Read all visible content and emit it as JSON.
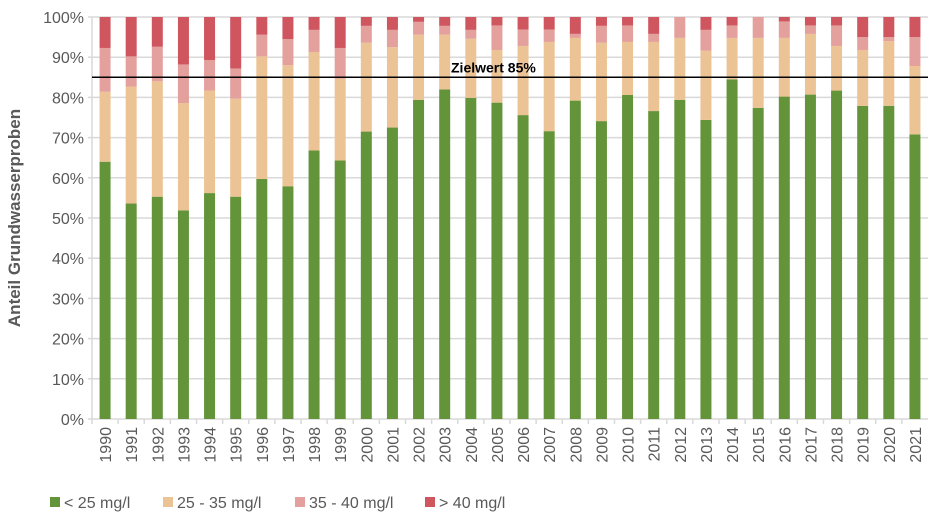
{
  "chart_data": {
    "type": "bar",
    "stacked": true,
    "title": "",
    "xlabel": "",
    "ylabel": "Anteil Grundwasserproben",
    "ylim": [
      0,
      100
    ],
    "yticks": [
      "0%",
      "10%",
      "20%",
      "30%",
      "40%",
      "50%",
      "60%",
      "70%",
      "80%",
      "90%",
      "100%"
    ],
    "grid": true,
    "legend_position": "bottom",
    "categories": [
      "1990",
      "1991",
      "1992",
      "1993",
      "1994",
      "1995",
      "1996",
      "1997",
      "1998",
      "1999",
      "2000",
      "2001",
      "2002",
      "2003",
      "2004",
      "2005",
      "2006",
      "2007",
      "2008",
      "2009",
      "2010",
      "2011",
      "2012",
      "2013",
      "2014",
      "2015",
      "2016",
      "2017",
      "2018",
      "2019",
      "2020",
      "2021"
    ],
    "series": [
      {
        "name": "< 25 mg/l",
        "color": "#63943a",
        "values": [
          64.0,
          53.6,
          55.3,
          51.9,
          56.2,
          55.3,
          59.7,
          57.9,
          66.8,
          64.3,
          71.5,
          72.5,
          79.4,
          82.0,
          79.9,
          78.7,
          75.6,
          71.6,
          79.2,
          74.1,
          80.6,
          76.6,
          79.4,
          74.4,
          84.5,
          77.4,
          80.2,
          80.7,
          81.7,
          77.9,
          77.9,
          70.8
        ]
      },
      {
        "name": "25 - 35 mg/l",
        "color": "#ecc394",
        "values": [
          17.4,
          29.1,
          28.7,
          26.7,
          25.5,
          24.4,
          30.5,
          30.1,
          24.5,
          20.4,
          22.1,
          20.0,
          16.2,
          13.6,
          14.7,
          13.1,
          17.2,
          22.2,
          15.6,
          19.5,
          13.2,
          17.2,
          15.4,
          17.2,
          10.3,
          17.4,
          14.6,
          15.1,
          11.1,
          13.9,
          16.1,
          17.0
        ]
      },
      {
        "name": "35 - 40 mg/l",
        "color": "#e3a09c",
        "values": [
          10.9,
          7.5,
          8.6,
          9.6,
          7.6,
          7.5,
          5.4,
          6.5,
          5.5,
          7.6,
          4.2,
          4.3,
          3.2,
          2.2,
          2.2,
          6.1,
          4.1,
          3.1,
          1.0,
          4.2,
          4.1,
          2.0,
          5.2,
          5.2,
          3.1,
          5.2,
          4.1,
          2.1,
          5.1,
          3.2,
          1.0,
          7.2
        ]
      },
      {
        "name": "> 40 mg/l",
        "color": "#cf555f",
        "values": [
          7.7,
          9.8,
          7.4,
          11.8,
          10.7,
          12.8,
          4.4,
          5.5,
          3.2,
          7.7,
          2.2,
          3.2,
          1.2,
          2.2,
          3.2,
          2.1,
          3.1,
          3.1,
          4.2,
          2.2,
          2.1,
          4.2,
          0,
          3.2,
          2.1,
          0,
          1.1,
          2.1,
          2.1,
          5.0,
          5.0,
          5.0
        ]
      }
    ],
    "reference_line": {
      "value": 85,
      "label": "Zielwert 85%",
      "color": "#000000"
    }
  }
}
